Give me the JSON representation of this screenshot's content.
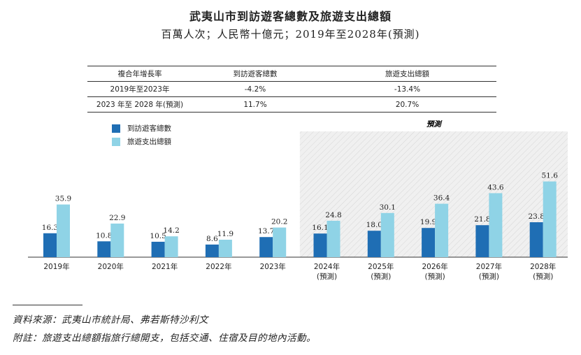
{
  "title": "武夷山市到訪遊客總數及旅遊支出總額",
  "subtitle": "百萬人次；人民幣十億元；2019年至2028年(預測)",
  "cagr_table": {
    "headers": [
      "複合年增長率",
      "到訪遊客總數",
      "旅遊支出總額"
    ],
    "rows": [
      [
        "2019年至2023年",
        "-4.2%",
        "-13.4%"
      ],
      [
        "2023 年至 2028 年(預測)",
        "11.7%",
        "20.7%"
      ]
    ]
  },
  "forecast_label": "預測",
  "colors": {
    "visitors": "#1f6eb4",
    "spending": "#8fd3e6",
    "forecast_bg": "#f0f0f0"
  },
  "chart_data": {
    "type": "bar",
    "categories": [
      "2019年",
      "2020年",
      "2021年",
      "2022年",
      "2023年",
      "2024年",
      "2025年",
      "2026年",
      "2027年",
      "2028年"
    ],
    "category_notes": [
      "",
      "",
      "",
      "",
      "",
      "(預測)",
      "(預測)",
      "(預測)",
      "(預測)",
      "(預測)"
    ],
    "series": [
      {
        "name": "到訪遊客總數",
        "values": [
          16.3,
          10.8,
          10.5,
          8.6,
          13.7,
          16.1,
          18.0,
          19.9,
          21.8,
          23.8
        ]
      },
      {
        "name": "旅遊支出總額",
        "values": [
          35.9,
          22.9,
          14.2,
          11.9,
          20.2,
          24.8,
          30.1,
          36.4,
          43.6,
          51.6
        ]
      }
    ],
    "value_labels": [
      [
        "16.3",
        "10.8",
        "10.5",
        "8.6",
        "13.7",
        "16.1",
        "18.0",
        "19.9",
        "21.8",
        "23.8"
      ],
      [
        "35.9",
        "22.9",
        "14.2",
        "11.9",
        "20.2",
        "24.8",
        "30.1",
        "36.4",
        "43.6",
        "51.6"
      ]
    ],
    "forecast_start_index": 5,
    "ylim": [
      0,
      55
    ],
    "grid": false,
    "legend": "top-left"
  },
  "footnotes": {
    "source": "資料來源：武夷山市統計局、弗若斯特沙利文",
    "note": "附註：旅遊支出總額指旅行總開支，包括交通、住宿及目的地內活動。"
  }
}
